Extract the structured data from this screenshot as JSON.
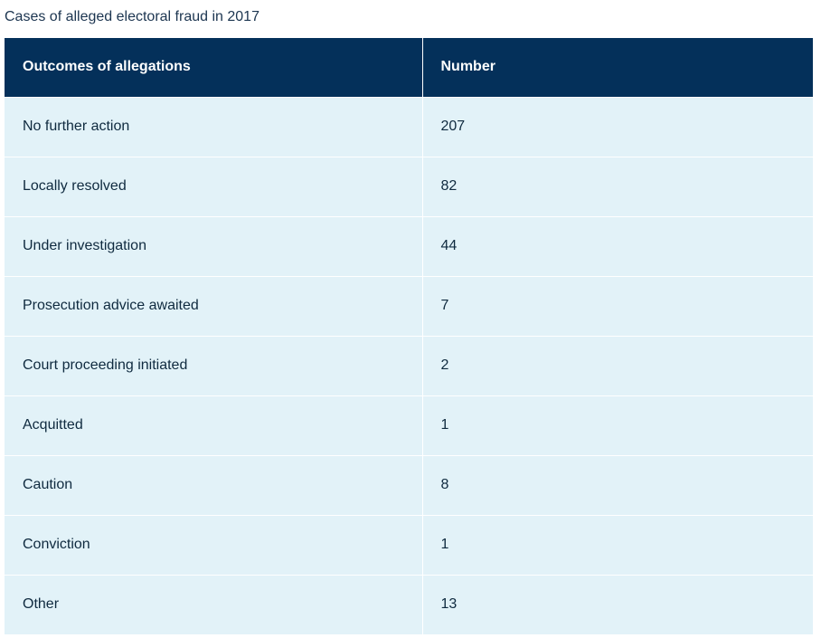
{
  "caption": "Cases of alleged electoral fraud in 2017",
  "table": {
    "headers": [
      "Outcomes of allegations",
      "Number"
    ],
    "rows": [
      {
        "outcome": "No further action",
        "number": "207"
      },
      {
        "outcome": "Locally resolved",
        "number": "82"
      },
      {
        "outcome": "Under investigation",
        "number": "44"
      },
      {
        "outcome": "Prosecution advice awaited",
        "number": "7"
      },
      {
        "outcome": "Court proceeding initiated",
        "number": "2"
      },
      {
        "outcome": "Acquitted",
        "number": "1"
      },
      {
        "outcome": "Caution",
        "number": "8"
      },
      {
        "outcome": "Conviction",
        "number": "1"
      },
      {
        "outcome": "Other",
        "number": "13"
      }
    ]
  },
  "colors": {
    "header_bg": "#04305a",
    "header_text": "#ffffff",
    "row_bg": "#e2f2f8",
    "text": "#0f2a3f"
  }
}
